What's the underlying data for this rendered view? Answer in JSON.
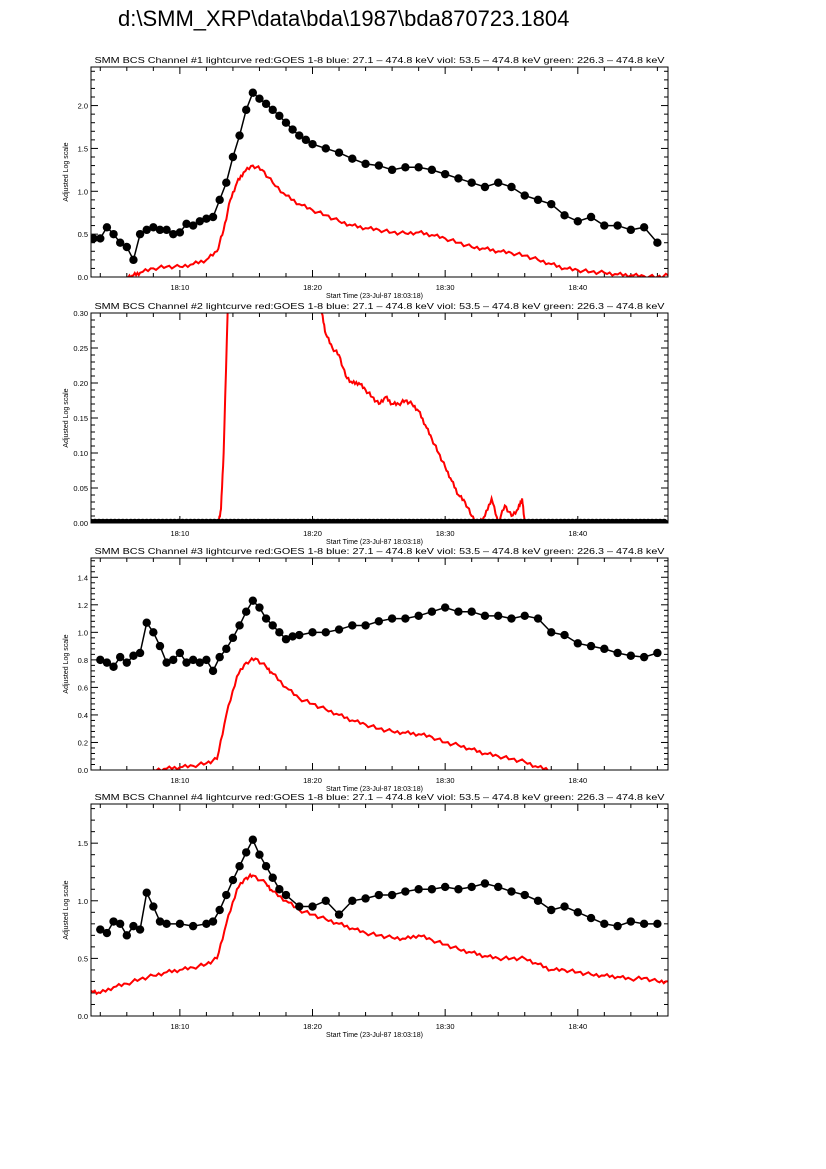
{
  "page_title": "d:\\SMM_XRP\\data\\bda\\1987\\bda870723.1804",
  "colors": {
    "goes": "#ff0000",
    "bcs": "#000000"
  },
  "chart_data": [
    {
      "type": "line",
      "title": "SMM BCS Channel #1 lightcurve  red:GOES 1-8  blue: 27.1 – 474.8 keV  viol: 53.5 – 474.8 keV  green: 226.3 – 474.8 keV",
      "xlabel": "Start Time (23-Jul-87 18:03:18)",
      "ylabel": "Adjusted Log scale",
      "xlim_minutes_after_1800": [
        3.3,
        46.8
      ],
      "x_ticks": [
        {
          "value": 10,
          "label": "18:10"
        },
        {
          "value": 20,
          "label": "18:20"
        },
        {
          "value": 30,
          "label": "18:30"
        },
        {
          "value": 40,
          "label": "18:40"
        }
      ],
      "ylim": [
        0,
        2.45
      ],
      "y_ticks": [
        "0.0",
        "0.5",
        "1.0",
        "1.5",
        "2.0"
      ],
      "y_tick_step": 0.5,
      "series": [
        {
          "name": "GOES 1-8",
          "color": "#ff0000",
          "style": "line",
          "x": [
            6,
            6.5,
            7,
            8,
            9,
            10,
            11,
            12,
            12.8,
            13.3,
            13.8,
            14.3,
            14.8,
            15.5,
            16.2,
            17,
            18,
            19,
            20,
            21,
            22,
            23,
            24,
            25,
            26,
            27,
            28,
            29,
            30,
            31,
            32,
            33,
            34,
            35,
            36,
            37,
            38,
            39,
            40,
            41,
            42,
            43,
            44,
            45,
            46,
            46.8
          ],
          "y": [
            0,
            0.02,
            0.05,
            0.1,
            0.12,
            0.12,
            0.15,
            0.2,
            0.3,
            0.55,
            0.9,
            1.1,
            1.22,
            1.3,
            1.25,
            1.1,
            0.95,
            0.85,
            0.78,
            0.72,
            0.65,
            0.6,
            0.57,
            0.55,
            0.52,
            0.51,
            0.52,
            0.49,
            0.45,
            0.4,
            0.35,
            0.33,
            0.3,
            0.28,
            0.25,
            0.2,
            0.15,
            0.1,
            0.08,
            0.06,
            0.05,
            0.03,
            0.02,
            0.01,
            0,
            0.02
          ]
        },
        {
          "name": "BCS",
          "color": "#000000",
          "style": "dots",
          "x": [
            3.5,
            4,
            4.5,
            5,
            5.5,
            6,
            6.5,
            7,
            7.5,
            8,
            8.5,
            9,
            9.5,
            10,
            10.5,
            11,
            11.5,
            12,
            12.5,
            13,
            13.5,
            14,
            14.5,
            15,
            15.5,
            16,
            16.5,
            17,
            17.5,
            18,
            18.5,
            19,
            19.5,
            20,
            21,
            22,
            23,
            24,
            25,
            26,
            27,
            28,
            29,
            30,
            31,
            32,
            33,
            34,
            35,
            36,
            37,
            38,
            39,
            40,
            41,
            42,
            43,
            44,
            45,
            46
          ],
          "y": [
            0.45,
            0.45,
            0.58,
            0.5,
            0.4,
            0.35,
            0.2,
            0.5,
            0.55,
            0.58,
            0.55,
            0.55,
            0.5,
            0.52,
            0.62,
            0.6,
            0.65,
            0.68,
            0.7,
            0.9,
            1.1,
            1.4,
            1.65,
            1.95,
            2.15,
            2.08,
            2.02,
            1.95,
            1.88,
            1.8,
            1.72,
            1.65,
            1.6,
            1.55,
            1.5,
            1.45,
            1.38,
            1.32,
            1.3,
            1.25,
            1.28,
            1.28,
            1.25,
            1.2,
            1.15,
            1.1,
            1.05,
            1.1,
            1.05,
            0.95,
            0.9,
            0.85,
            0.72,
            0.65,
            0.7,
            0.6,
            0.6,
            0.55,
            0.58,
            0.4
          ]
        }
      ]
    },
    {
      "type": "line",
      "title": "SMM BCS Channel #2 lightcurve  red:GOES 1-8  blue: 27.1 – 474.8 keV  viol: 53.5 – 474.8 keV  green: 226.3 – 474.8 keV",
      "xlabel": "Start Time (23-Jul-87 18:03:18)",
      "ylabel": "Adjusted Log scale",
      "xlim_minutes_after_1800": [
        3.3,
        46.8
      ],
      "x_ticks": [
        {
          "value": 10,
          "label": "18:10"
        },
        {
          "value": 20,
          "label": "18:20"
        },
        {
          "value": 30,
          "label": "18:30"
        },
        {
          "value": 40,
          "label": "18:40"
        }
      ],
      "ylim": [
        0,
        0.3
      ],
      "y_ticks": [
        "0.00",
        "0.05",
        "0.10",
        "0.15",
        "0.20",
        "0.25",
        "0.30"
      ],
      "y_tick_step": 0.05,
      "series": [
        {
          "name": "GOES 1-8",
          "color": "#ff0000",
          "style": "line",
          "x": [
            12.9,
            13.1,
            13.3,
            13.6,
            14,
            20,
            20.7,
            21,
            21.5,
            22,
            22.5,
            23,
            23.5,
            24,
            24.5,
            25,
            25.5,
            26,
            26.5,
            27,
            27.5,
            28,
            28.5,
            29,
            29.5,
            30,
            30.5,
            31,
            31.5,
            32,
            32.5,
            33,
            33.5,
            34,
            34.5,
            35,
            35.5,
            35.8,
            36
          ],
          "y": [
            0,
            0.02,
            0.1,
            0.3,
            0.5,
            0.4,
            0.3,
            0.27,
            0.25,
            0.24,
            0.21,
            0.2,
            0.2,
            0.19,
            0.18,
            0.17,
            0.18,
            0.17,
            0.17,
            0.175,
            0.17,
            0.16,
            0.14,
            0.12,
            0.1,
            0.08,
            0.06,
            0.04,
            0.03,
            0.01,
            0,
            0.01,
            0.035,
            0.0,
            0.025,
            0.01,
            0.02,
            0.035,
            0
          ]
        },
        {
          "name": "BCS",
          "color": "#000000",
          "style": "dots",
          "x_range": [
            3.3,
            46.5
          ],
          "constant_y": 0
        }
      ]
    },
    {
      "type": "line",
      "title": "SMM BCS Channel #3 lightcurve  red:GOES 1-8  blue: 27.1 – 474.8 keV  viol: 53.5 – 474.8 keV  green: 226.3 – 474.8 keV",
      "xlabel": "Start Time (23-Jul-87 18:03:18)",
      "ylabel": "Adjusted Log scale",
      "xlim_minutes_after_1800": [
        3.3,
        46.8
      ],
      "x_ticks": [
        {
          "value": 10,
          "label": "18:10"
        },
        {
          "value": 20,
          "label": "18:20"
        },
        {
          "value": 30,
          "label": "18:30"
        },
        {
          "value": 40,
          "label": "18:40"
        }
      ],
      "ylim": [
        0,
        1.54
      ],
      "y_ticks": [
        "0.0",
        "0.2",
        "0.4",
        "0.6",
        "0.8",
        "1.0",
        "1.2",
        "1.4"
      ],
      "y_tick_step": 0.2,
      "series": [
        {
          "name": "GOES 1-8",
          "color": "#ff0000",
          "style": "line",
          "x": [
            8,
            9,
            10,
            11,
            12,
            12.8,
            13.5,
            14.3,
            15,
            15.7,
            16.5,
            17,
            18,
            19,
            20,
            21,
            22,
            23,
            24,
            25,
            26,
            27,
            28,
            29,
            30,
            31,
            32,
            33,
            34,
            35,
            36,
            37,
            38
          ],
          "y": [
            0,
            0.01,
            0.02,
            0.03,
            0.05,
            0.08,
            0.4,
            0.68,
            0.78,
            0.81,
            0.75,
            0.7,
            0.6,
            0.52,
            0.48,
            0.44,
            0.4,
            0.36,
            0.33,
            0.3,
            0.28,
            0.27,
            0.26,
            0.24,
            0.2,
            0.18,
            0.15,
            0.12,
            0.1,
            0.08,
            0.06,
            0.02,
            0
          ]
        },
        {
          "name": "BCS",
          "color": "#000000",
          "style": "dots",
          "x": [
            4,
            4.5,
            5,
            5.5,
            6,
            6.5,
            7,
            7.5,
            8,
            8.5,
            9,
            9.5,
            10,
            10.5,
            11,
            11.5,
            12,
            12.5,
            13,
            13.5,
            14,
            14.5,
            15,
            15.5,
            16,
            16.5,
            17,
            17.5,
            18,
            18.5,
            19,
            20,
            21,
            22,
            23,
            24,
            25,
            26,
            27,
            28,
            29,
            30,
            31,
            32,
            33,
            34,
            35,
            36,
            37,
            38,
            39,
            40,
            41,
            42,
            43,
            44,
            45,
            46
          ],
          "y": [
            0.8,
            0.78,
            0.75,
            0.82,
            0.78,
            0.83,
            0.85,
            1.07,
            1.0,
            0.9,
            0.78,
            0.8,
            0.85,
            0.78,
            0.8,
            0.78,
            0.8,
            0.72,
            0.82,
            0.88,
            0.96,
            1.05,
            1.15,
            1.23,
            1.18,
            1.1,
            1.05,
            1.0,
            0.95,
            0.97,
            0.98,
            1.0,
            1.0,
            1.02,
            1.05,
            1.05,
            1.08,
            1.1,
            1.1,
            1.12,
            1.15,
            1.18,
            1.15,
            1.15,
            1.12,
            1.12,
            1.1,
            1.12,
            1.1,
            1.0,
            0.98,
            0.92,
            0.9,
            0.88,
            0.85,
            0.83,
            0.82,
            0.85
          ]
        }
      ]
    },
    {
      "type": "line",
      "title": "SMM BCS Channel #4 lightcurve  red:GOES 1-8  blue: 27.1 – 474.8 keV  viol: 53.5 – 474.8 keV  green: 226.3 – 474.8 keV",
      "xlabel": "Start Time (23-Jul-87 18:03:18)",
      "ylabel": "Adjusted Log scale",
      "xlim_minutes_after_1800": [
        3.3,
        46.8
      ],
      "x_ticks": [
        {
          "value": 10,
          "label": "18:10"
        },
        {
          "value": 20,
          "label": "18:20"
        },
        {
          "value": 30,
          "label": "18:30"
        },
        {
          "value": 40,
          "label": "18:40"
        }
      ],
      "ylim": [
        0,
        1.84
      ],
      "y_ticks": [
        "0.0",
        "0.5",
        "1.0",
        "1.5"
      ],
      "y_tick_step": 0.5,
      "series": [
        {
          "name": "GOES 1-8",
          "color": "#ff0000",
          "style": "line",
          "x": [
            3.3,
            4,
            5,
            6,
            7,
            8,
            9,
            10,
            11,
            12,
            12.8,
            13.5,
            14.3,
            15,
            15.5,
            16.5,
            17,
            18,
            19,
            20,
            21,
            22,
            23,
            24,
            25,
            26,
            27,
            28,
            29,
            30,
            31,
            32,
            33,
            34,
            35,
            36,
            37,
            38,
            39,
            40,
            41,
            42,
            43,
            44,
            45,
            46,
            46.8
          ],
          "y": [
            0.22,
            0.2,
            0.25,
            0.28,
            0.32,
            0.35,
            0.38,
            0.4,
            0.42,
            0.45,
            0.5,
            0.8,
            1.1,
            1.2,
            1.22,
            1.15,
            1.08,
            1.0,
            0.92,
            0.88,
            0.84,
            0.8,
            0.76,
            0.72,
            0.7,
            0.68,
            0.67,
            0.7,
            0.66,
            0.62,
            0.58,
            0.55,
            0.52,
            0.5,
            0.5,
            0.5,
            0.45,
            0.4,
            0.4,
            0.38,
            0.36,
            0.35,
            0.34,
            0.32,
            0.33,
            0.3,
            0.3
          ]
        },
        {
          "name": "BCS",
          "color": "#000000",
          "style": "dots",
          "x": [
            4,
            4.5,
            5,
            5.5,
            6,
            6.5,
            7,
            7.5,
            8,
            8.5,
            9,
            10,
            11,
            12,
            12.5,
            13,
            13.5,
            14,
            14.5,
            15,
            15.5,
            16,
            16.5,
            17,
            17.5,
            18,
            19,
            20,
            21,
            22,
            23,
            24,
            25,
            26,
            27,
            28,
            29,
            30,
            31,
            32,
            33,
            34,
            35,
            36,
            37,
            38,
            39,
            40,
            41,
            42,
            43,
            44,
            45,
            46
          ],
          "y": [
            0.75,
            0.72,
            0.82,
            0.8,
            0.7,
            0.78,
            0.75,
            1.07,
            0.95,
            0.82,
            0.8,
            0.8,
            0.78,
            0.8,
            0.82,
            0.92,
            1.05,
            1.18,
            1.3,
            1.42,
            1.53,
            1.4,
            1.3,
            1.2,
            1.1,
            1.05,
            0.95,
            0.95,
            1.0,
            0.88,
            1.0,
            1.02,
            1.05,
            1.05,
            1.08,
            1.1,
            1.1,
            1.12,
            1.1,
            1.12,
            1.15,
            1.12,
            1.08,
            1.05,
            1.0,
            0.92,
            0.95,
            0.9,
            0.85,
            0.8,
            0.78,
            0.82,
            0.8,
            0.8
          ]
        }
      ]
    }
  ]
}
